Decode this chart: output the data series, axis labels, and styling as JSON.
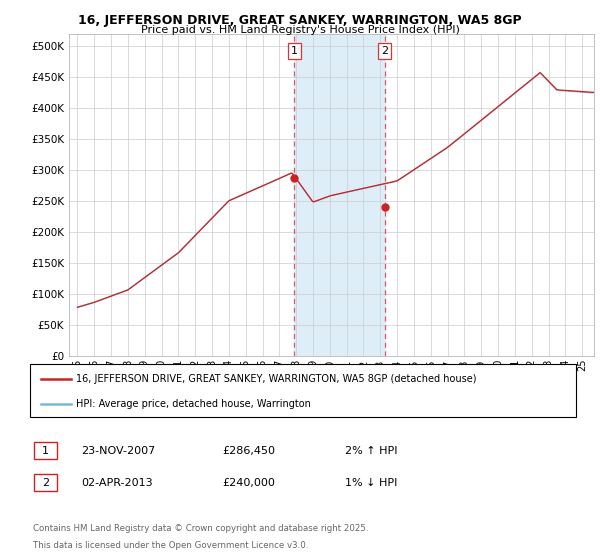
{
  "title_line1": "16, JEFFERSON DRIVE, GREAT SANKEY, WARRINGTON, WA5 8GP",
  "title_line2": "Price paid vs. HM Land Registry's House Price Index (HPI)",
  "ylim": [
    0,
    520000
  ],
  "yticks": [
    0,
    50000,
    100000,
    150000,
    200000,
    250000,
    300000,
    350000,
    400000,
    450000,
    500000
  ],
  "ytick_labels": [
    "£0",
    "£50K",
    "£100K",
    "£150K",
    "£200K",
    "£250K",
    "£300K",
    "£350K",
    "£400K",
    "£450K",
    "£500K"
  ],
  "xtick_years": [
    1995,
    1996,
    1997,
    1998,
    1999,
    2000,
    2001,
    2002,
    2003,
    2004,
    2005,
    2006,
    2007,
    2008,
    2009,
    2010,
    2011,
    2012,
    2013,
    2014,
    2015,
    2016,
    2017,
    2018,
    2019,
    2020,
    2021,
    2022,
    2023,
    2024,
    2025
  ],
  "xtick_labels": [
    "95",
    "96",
    "97",
    "98",
    "99",
    "00",
    "01",
    "02",
    "03",
    "04",
    "05",
    "06",
    "07",
    "08",
    "09",
    "10",
    "11",
    "12",
    "13",
    "14",
    "15",
    "16",
    "17",
    "18",
    "19",
    "20",
    "21",
    "22",
    "23",
    "24",
    "25"
  ],
  "sale1_x": 2007.9,
  "sale1_y": 286450,
  "sale1_label": "1",
  "sale2_x": 2013.25,
  "sale2_y": 240000,
  "sale2_label": "2",
  "shade_color": "#ddeef8",
  "vline_color": "#dd3333",
  "legend_line1": "16, JEFFERSON DRIVE, GREAT SANKEY, WARRINGTON, WA5 8GP (detached house)",
  "legend_line2": "HPI: Average price, detached house, Warrington",
  "footer1": "Contains HM Land Registry data © Crown copyright and database right 2025.",
  "footer2": "This data is licensed under the Open Government Licence v3.0.",
  "table_row1": [
    "1",
    "23-NOV-2007",
    "£286,450",
    "2% ↑ HPI"
  ],
  "table_row2": [
    "2",
    "02-APR-2013",
    "£240,000",
    "1% ↓ HPI"
  ],
  "hpi_color": "#7ab8d9",
  "price_color": "#cc2222",
  "bg_color": "#ffffff",
  "grid_color": "#cccccc"
}
